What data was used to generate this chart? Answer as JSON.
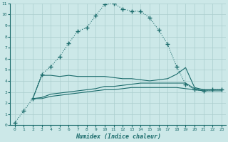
{
  "xlabel": "Humidex (Indice chaleur)",
  "bg_color": "#cce8e8",
  "line_color": "#1a6b6b",
  "grid_color": "#aacece",
  "xlim": [
    -0.5,
    23.5
  ],
  "ylim": [
    0,
    11
  ],
  "xticks": [
    0,
    1,
    2,
    3,
    4,
    5,
    6,
    7,
    8,
    9,
    10,
    11,
    12,
    13,
    14,
    15,
    16,
    17,
    18,
    19,
    20,
    21,
    22,
    23
  ],
  "yticks": [
    0,
    1,
    2,
    3,
    4,
    5,
    6,
    7,
    8,
    9,
    10,
    11
  ],
  "line1_x": [
    0,
    1,
    2,
    3,
    4,
    5,
    6,
    7,
    8,
    9,
    10,
    11,
    12,
    13,
    14,
    15,
    16,
    17,
    18,
    19,
    20,
    21,
    22,
    23
  ],
  "line1_y": [
    0.2,
    1.3,
    2.4,
    4.6,
    5.3,
    6.2,
    7.4,
    8.5,
    8.8,
    9.9,
    10.9,
    11.0,
    10.5,
    10.3,
    10.3,
    9.7,
    8.6,
    7.3,
    5.3,
    3.7,
    3.2,
    3.1,
    3.2,
    3.2
  ],
  "line2_x": [
    2,
    3,
    4,
    5,
    6,
    7,
    8,
    9,
    10,
    11,
    12,
    13,
    14,
    15,
    16,
    17,
    18,
    19,
    20,
    21,
    22,
    23
  ],
  "line2_y": [
    2.4,
    4.5,
    4.5,
    4.4,
    4.5,
    4.4,
    4.4,
    4.4,
    4.4,
    4.3,
    4.2,
    4.2,
    4.1,
    4.0,
    4.1,
    4.2,
    4.6,
    5.2,
    3.4,
    3.2,
    3.2,
    3.2
  ],
  "line3_x": [
    2,
    3,
    4,
    5,
    6,
    7,
    8,
    9,
    10,
    11,
    12,
    13,
    14,
    15,
    16,
    17,
    18,
    19,
    20,
    21,
    22,
    23
  ],
  "line3_y": [
    2.4,
    2.5,
    2.8,
    2.9,
    3.0,
    3.1,
    3.2,
    3.3,
    3.5,
    3.5,
    3.6,
    3.7,
    3.8,
    3.8,
    3.8,
    3.8,
    3.8,
    3.8,
    3.3,
    3.2,
    3.2,
    3.2
  ],
  "line4_x": [
    2,
    3,
    4,
    5,
    6,
    7,
    8,
    9,
    10,
    11,
    12,
    13,
    14,
    15,
    16,
    17,
    18,
    19,
    20,
    21,
    22,
    23
  ],
  "line4_y": [
    2.4,
    2.4,
    2.6,
    2.7,
    2.8,
    2.9,
    3.0,
    3.1,
    3.2,
    3.2,
    3.3,
    3.4,
    3.4,
    3.4,
    3.4,
    3.4,
    3.4,
    3.3,
    3.2,
    3.1,
    3.1,
    3.1
  ]
}
